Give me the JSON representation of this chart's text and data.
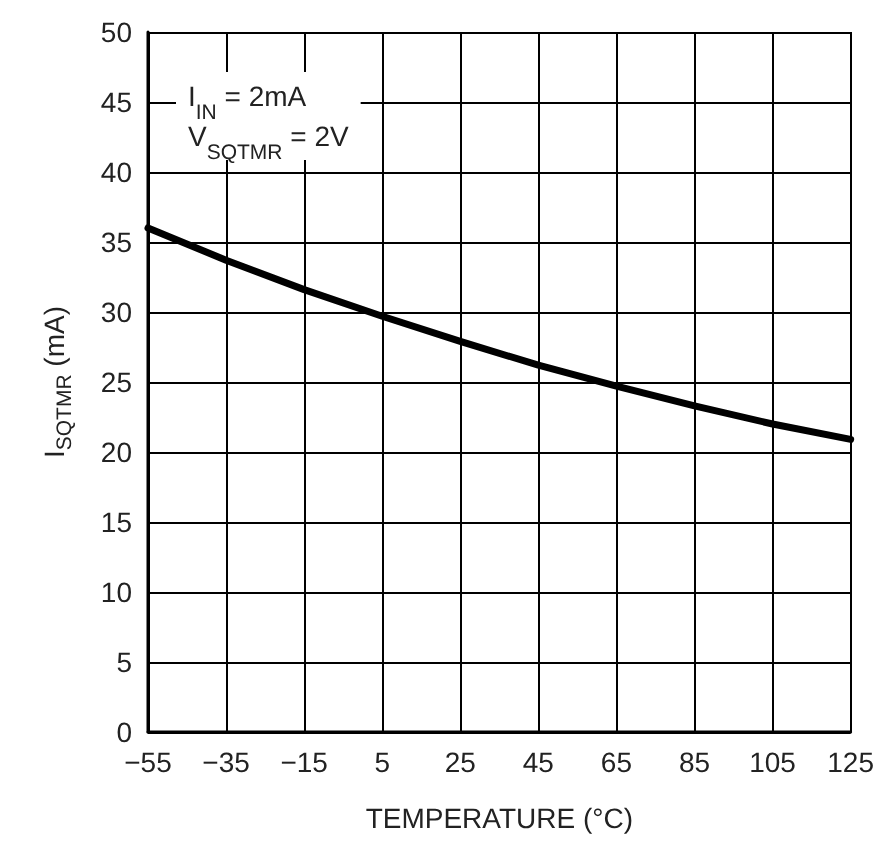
{
  "chart_data": {
    "type": "line",
    "xlabel": "TEMPERATURE (°C)",
    "ylabel": "I$_{SQTMR}$ (mA)",
    "annotations": [
      "I$_{IN}$ = 2mA",
      "V$_{SQTMR}$ = 2V"
    ],
    "x": [
      -55,
      -35,
      -15,
      5,
      25,
      45,
      65,
      85,
      105,
      125
    ],
    "series": [
      {
        "color": "#000000",
        "values": [
          36.0,
          33.7,
          31.6,
          29.7,
          27.9,
          26.2,
          24.7,
          23.3,
          22.0,
          20.9
        ]
      }
    ],
    "xlim": [
      -55,
      125
    ],
    "xticks": [
      {
        "value": -55,
        "label": "−55"
      },
      {
        "value": -35,
        "label": "−35"
      },
      {
        "value": -15,
        "label": "−15"
      },
      5,
      25,
      45,
      65,
      85,
      105,
      125
    ],
    "ylim": [
      0,
      50
    ],
    "yticks": [
      0,
      5,
      10,
      15,
      20,
      25,
      30,
      35,
      40,
      45,
      50
    ],
    "grid": true,
    "marker": "none",
    "line_style": "solid"
  }
}
